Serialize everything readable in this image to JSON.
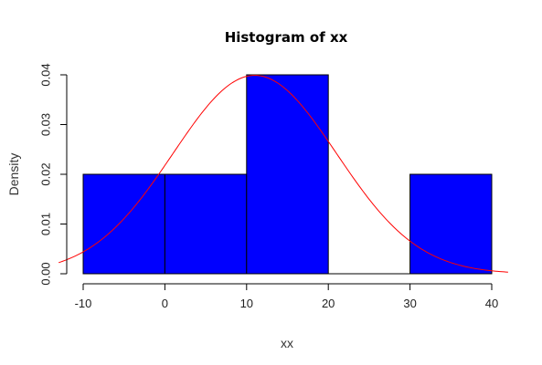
{
  "chart_data": {
    "type": "bar",
    "title": "Histogram of xx",
    "xlabel": "xx",
    "ylabel": "Density",
    "bins": [
      {
        "x0": -10,
        "x1": 0,
        "density": 0.02
      },
      {
        "x0": 0,
        "x1": 10,
        "density": 0.02
      },
      {
        "x0": 10,
        "x1": 20,
        "density": 0.04
      },
      {
        "x0": 20,
        "x1": 30,
        "density": 0.0
      },
      {
        "x0": 30,
        "x1": 40,
        "density": 0.02
      }
    ],
    "xlim": [
      -10,
      40
    ],
    "ylim": [
      0,
      0.04
    ],
    "xticks": [
      "-10",
      "0",
      "10",
      "20",
      "30",
      "40"
    ],
    "yticks": [
      "0.00",
      "0.01",
      "0.02",
      "0.03",
      "0.04"
    ],
    "bar_color": "#0000ff",
    "bar_border_color": "#000000",
    "density_curve": {
      "type": "normal",
      "mean": 11,
      "sd": 10,
      "color": "#ff0000",
      "x_range": [
        -13,
        42
      ]
    }
  }
}
